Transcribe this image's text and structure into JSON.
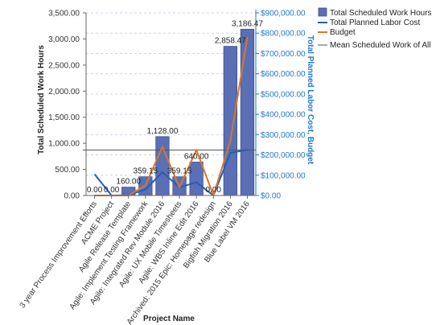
{
  "chart_data": {
    "type": "bar",
    "xlabel": "Project Name",
    "ylabel": "Total Scheduled Work Hours",
    "y2label": "Total Planned Labor Cost, Budget",
    "ylim": [
      0,
      3500
    ],
    "y2lim": [
      0,
      900000
    ],
    "yticks": [
      "0.00",
      "500.00",
      "1,000.00",
      "1,500.00",
      "2,000.00",
      "2,500.00",
      "3,000.00",
      "3,500.00"
    ],
    "y2ticks": [
      "$0.00",
      "$100,000.00",
      "$200,000.00",
      "$300,000.00",
      "$400,000.00",
      "$500,000.00",
      "$600,000.00",
      "$700,000.00",
      "$800,000.00",
      "$900,000.00"
    ],
    "categories": [
      "3 year Process Improvement Efforts",
      "ACME Project",
      "Agile Release Template",
      "Agile: Implement Testing Framework",
      "Agile: Integrated Rev Module 2016",
      "Agile: UX Mobile Timesheets",
      "Agile: WBS Inline Edit 2016",
      "Archived: 2015 Epic: Homepage redesign",
      "Bigfish Migration 2016",
      "Blue Label VM 2016"
    ],
    "series": [
      {
        "name": "Total Scheduled Work Hours",
        "type": "bar",
        "axis": "left",
        "color": "#5b6fb5",
        "values": [
          0,
          0,
          160,
          359.15,
          1128,
          359.15,
          640,
          0,
          2858.47,
          3186.47
        ]
      },
      {
        "name": "Total Planned Labor Cost",
        "type": "line",
        "axis": "right",
        "color": "#1f5fbf",
        "values": [
          105000,
          0,
          2000,
          30000,
          115000,
          40000,
          65000,
          0,
          210000,
          225000
        ]
      },
      {
        "name": "Budget",
        "type": "line",
        "axis": "right",
        "color": "#d9772b",
        "values": [
          0,
          0,
          0,
          50000,
          240000,
          40000,
          225000,
          0,
          270000,
          780000
        ]
      },
      {
        "name": "Mean Scheduled Work of All",
        "type": "reference-line",
        "axis": "left",
        "color": "#555555",
        "value": 871
      }
    ],
    "data_labels": [
      "0.00",
      "0.00",
      "160.00",
      "359.15",
      "1,128.00",
      "359.15",
      "640.00",
      "0.00",
      "2,858.47",
      "3,186.47"
    ],
    "grid": true,
    "legend": "top-right"
  }
}
